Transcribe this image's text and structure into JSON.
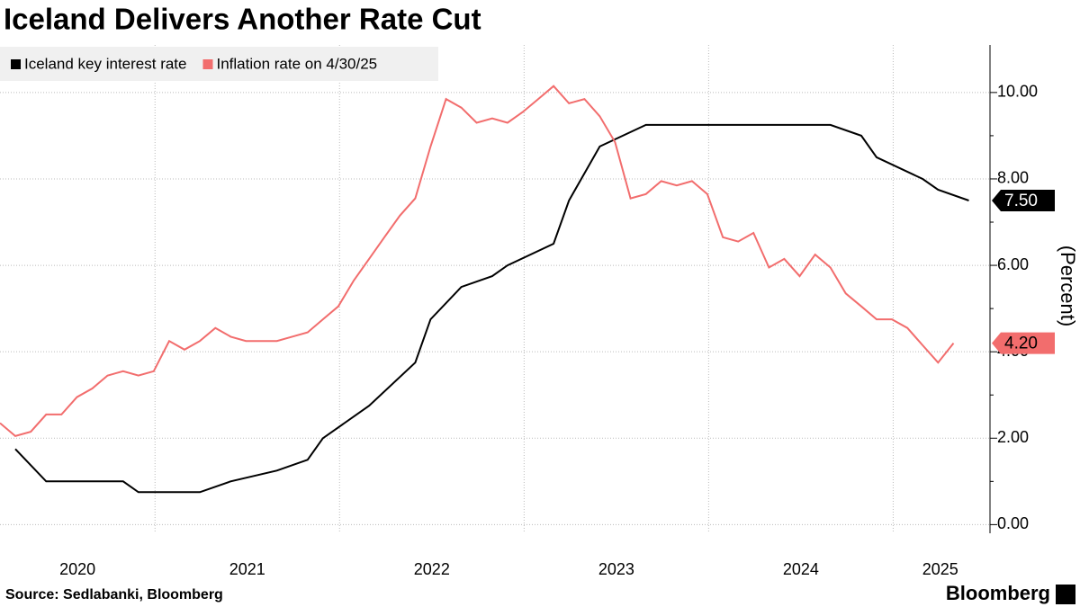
{
  "chart_data": {
    "type": "line",
    "title": "Iceland Delivers Another Rate Cut",
    "source": "Source: Sedlabanki, Bloomberg",
    "brand": "Bloomberg",
    "y_axis_label": "(Percent)",
    "xlim": [
      2020.16,
      2025.51
    ],
    "xticks": [
      2021,
      2022,
      2023,
      2024,
      2025
    ],
    "x_labels": [
      "2020",
      "2021",
      "2022",
      "2023",
      "2024",
      "2025"
    ],
    "ylim": [
      -0.2,
      11.1
    ],
    "yticks": [
      {
        "value": 0,
        "label": "0.00"
      },
      {
        "value": 2,
        "label": "2.00"
      },
      {
        "value": 4,
        "label": "4.00"
      },
      {
        "value": 6,
        "label": "6.00"
      },
      {
        "value": 8,
        "label": "8.00"
      },
      {
        "value": 10,
        "label": "10.00"
      }
    ],
    "grid": true,
    "legend": "top-left",
    "series": [
      {
        "name": "Iceland key interest rate",
        "color": "#000000",
        "last_label": "7.50",
        "label_text_color": "#ffffff",
        "x": [
          2020.243,
          2020.41,
          2020.827,
          2020.91,
          2021.243,
          2021.41,
          2021.66,
          2021.827,
          2021.91,
          2022.16,
          2022.41,
          2022.493,
          2022.66,
          2022.827,
          2022.91,
          2023.16,
          2023.243,
          2023.41,
          2023.66,
          2024.66,
          2024.827,
          2024.91,
          2025.16,
          2025.243,
          2025.41
        ],
        "values": [
          1.75,
          1.0,
          1.0,
          0.75,
          0.75,
          1.0,
          1.25,
          1.5,
          2.0,
          2.75,
          3.75,
          4.75,
          5.5,
          5.75,
          6.0,
          6.5,
          7.5,
          8.75,
          9.25,
          9.25,
          9.0,
          8.5,
          8.0,
          7.75,
          7.5
        ]
      },
      {
        "name": "Inflation rate on 4/30/25",
        "color": "#f26d6d",
        "last_label": "4.20",
        "label_text_color": "#000000",
        "x": [
          2020.16,
          2020.243,
          2020.327,
          2020.41,
          2020.493,
          2020.577,
          2020.66,
          2020.743,
          2020.827,
          2020.91,
          2020.993,
          2021.077,
          2021.16,
          2021.243,
          2021.327,
          2021.41,
          2021.493,
          2021.577,
          2021.66,
          2021.743,
          2021.827,
          2021.91,
          2021.993,
          2022.077,
          2022.16,
          2022.243,
          2022.327,
          2022.41,
          2022.493,
          2022.577,
          2022.66,
          2022.743,
          2022.827,
          2022.91,
          2022.993,
          2023.077,
          2023.16,
          2023.243,
          2023.327,
          2023.41,
          2023.493,
          2023.577,
          2023.66,
          2023.743,
          2023.827,
          2023.91,
          2023.993,
          2024.077,
          2024.16,
          2024.243,
          2024.327,
          2024.41,
          2024.493,
          2024.577,
          2024.66,
          2024.743,
          2024.827,
          2024.91,
          2024.993,
          2025.077,
          2025.16,
          2025.243,
          2025.327
        ],
        "values": [
          2.35,
          2.05,
          2.15,
          2.55,
          2.55,
          2.95,
          3.15,
          3.45,
          3.55,
          3.45,
          3.55,
          4.25,
          4.05,
          4.25,
          4.55,
          4.35,
          4.25,
          4.25,
          4.25,
          4.35,
          4.45,
          4.75,
          5.05,
          5.65,
          6.15,
          6.65,
          7.15,
          7.55,
          8.75,
          9.85,
          9.65,
          9.3,
          9.4,
          9.3,
          9.55,
          9.85,
          10.15,
          9.75,
          9.85,
          9.45,
          8.85,
          7.55,
          7.65,
          7.95,
          7.85,
          7.95,
          7.65,
          6.65,
          6.55,
          6.75,
          5.95,
          6.15,
          5.75,
          6.25,
          5.95,
          5.35,
          5.05,
          4.75,
          4.75,
          4.55,
          4.15,
          3.75,
          4.2
        ]
      }
    ]
  }
}
